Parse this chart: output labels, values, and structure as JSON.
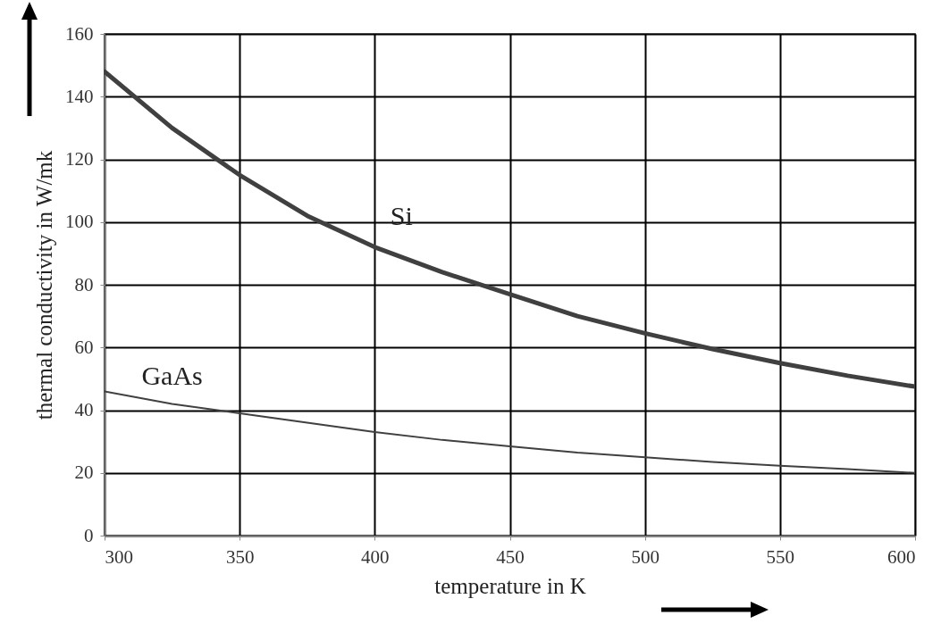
{
  "chart_data": {
    "type": "line",
    "xlabel": "temperature in K",
    "ylabel": "thermal conductivity in W/mk",
    "x": [
      300,
      325,
      350,
      375,
      400,
      425,
      450,
      475,
      500,
      525,
      550,
      575,
      600
    ],
    "series": [
      {
        "name": "Si",
        "color": "#404040",
        "values": [
          148,
          130,
          115,
          102,
          92,
          84,
          77,
          70,
          64.5,
          59.5,
          55,
          51,
          47.5
        ]
      },
      {
        "name": "GaAs",
        "color": "#404040",
        "values": [
          46,
          42,
          39,
          36,
          33,
          30.5,
          28.5,
          26.5,
          25,
          23.5,
          22.3,
          21.2,
          20
        ]
      }
    ],
    "xlim": [
      300,
      600
    ],
    "xticks": [
      300,
      350,
      400,
      450,
      500,
      550,
      600
    ],
    "ylim": [
      0,
      160
    ],
    "yticks": [
      0,
      20,
      40,
      60,
      80,
      100,
      120,
      140,
      160
    ],
    "grid": true,
    "marker": "none",
    "line_style": "solid"
  }
}
